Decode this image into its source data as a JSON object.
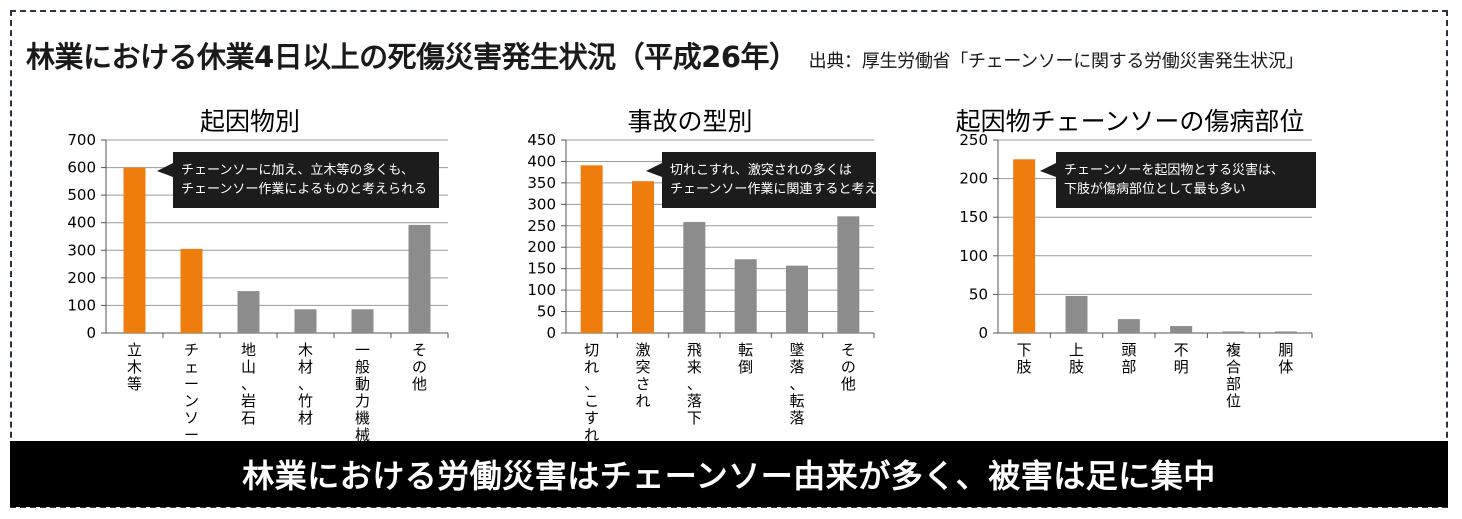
{
  "header": {
    "title": "林業における休業4日以上の死傷災害発生状況（平成26年）",
    "source": "出典：厚生労働省「チェーンソーに関する労働災害発生状況」"
  },
  "banner": {
    "text": "林業における労働災害はチェーンソー由来が多く、被害は足に集中"
  },
  "colors": {
    "highlight": "#ef7d0d",
    "other": "#8c8c8c",
    "grid": "#9a9a9a",
    "callout_bg": "#1c1c1c"
  },
  "chart_data": [
    {
      "type": "bar",
      "title": "起因物別",
      "categories": [
        "立木等",
        "チェーンソー",
        "地山、岩石",
        "木材、竹材",
        "一般動力機械",
        "その他"
      ],
      "values": [
        600,
        305,
        152,
        86,
        86,
        392
      ],
      "highlight": [
        true,
        true,
        false,
        false,
        false,
        false
      ],
      "ylim": [
        0,
        700
      ],
      "yticks": [
        0,
        100,
        200,
        300,
        400,
        500,
        600,
        700
      ],
      "grid": true,
      "annotation": [
        "チェーンソーに加え、立木等の多くも、",
        "チェーンソー作業によるものと考えられる"
      ]
    },
    {
      "type": "bar",
      "title": "事故の型別",
      "categories": [
        "切れ、こすれ",
        "激突され",
        "飛来、落下",
        "転倒",
        "墜落、転落",
        "その他"
      ],
      "values": [
        391,
        354,
        259,
        172,
        157,
        272
      ],
      "highlight": [
        true,
        true,
        false,
        false,
        false,
        false
      ],
      "ylim": [
        0,
        450
      ],
      "yticks": [
        0,
        50,
        100,
        150,
        200,
        250,
        300,
        350,
        400,
        450
      ],
      "grid": true,
      "annotation": [
        "切れこすれ、激突されの多くは",
        "チェーンソー作業に関連すると考えられる"
      ]
    },
    {
      "type": "bar",
      "title": "起因物チェーンソーの傷病部位",
      "categories": [
        "下肢",
        "上肢",
        "頭部",
        "不明",
        "複合部位",
        "胴体"
      ],
      "values": [
        225,
        48,
        18,
        9,
        2,
        2
      ],
      "highlight": [
        true,
        false,
        false,
        false,
        false,
        false
      ],
      "ylim": [
        0,
        250
      ],
      "yticks": [
        0,
        50,
        100,
        150,
        200,
        250
      ],
      "grid": true,
      "annotation": [
        "チェーンソーを起因物とする災害は、",
        "下肢が傷病部位として最も多い"
      ]
    }
  ]
}
